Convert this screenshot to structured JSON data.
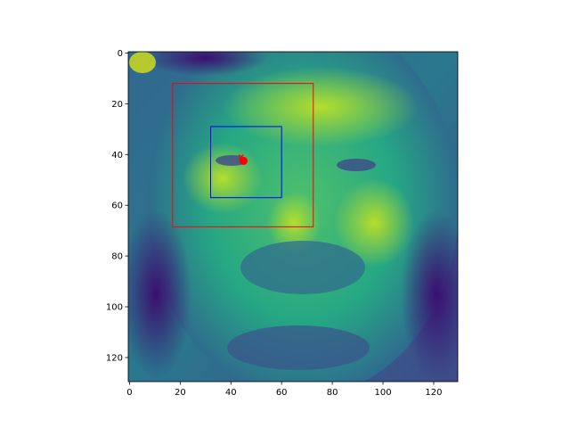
{
  "chart_data": {
    "type": "heatmap",
    "image": "grayscale face photograph rendered with viridis colormap",
    "colormap": [
      "#440154",
      "#3b528b",
      "#21918c",
      "#5ec962",
      "#fde725"
    ],
    "xlim": [
      -0.5,
      129.5
    ],
    "ylim": [
      129.5,
      -0.5
    ],
    "x_ticks": [
      0,
      20,
      40,
      60,
      80,
      100,
      120
    ],
    "y_ticks": [
      0,
      20,
      40,
      60,
      80,
      100,
      120
    ],
    "x_tick_labels": [
      "0",
      "20",
      "40",
      "60",
      "80",
      "100",
      "120"
    ],
    "y_tick_labels": [
      "0",
      "20",
      "40",
      "60",
      "80",
      "100",
      "120"
    ],
    "overlays": [
      {
        "kind": "rectangle",
        "color": "#ff0000",
        "x0": 17,
        "y0": 12,
        "x1": 72.5,
        "y1": 68.5
      },
      {
        "kind": "rectangle",
        "color": "#0000ff",
        "x0": 32,
        "y0": 29,
        "x1": 60,
        "y1": 57
      },
      {
        "kind": "point",
        "marker": "circle",
        "color": "#ff0000",
        "x": 45,
        "y": 42.5
      },
      {
        "kind": "point",
        "marker": "x",
        "color": "#ff0000",
        "x": 44,
        "y": 41
      }
    ]
  }
}
